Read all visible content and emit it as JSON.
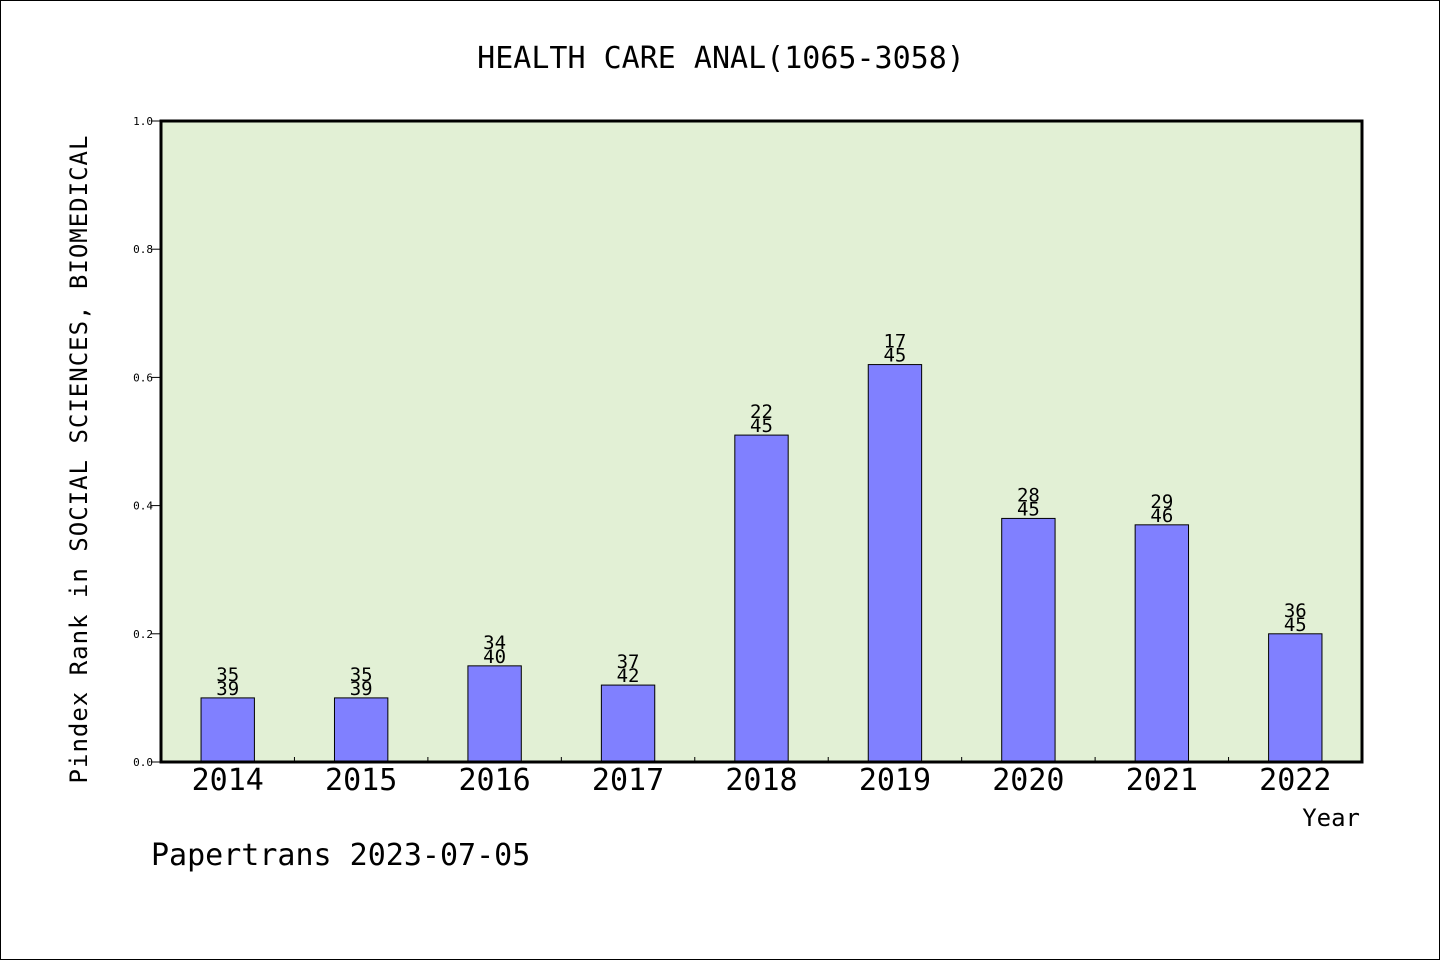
{
  "chart_data": {
    "type": "bar",
    "title": "HEALTH CARE ANAL(1065-3058)",
    "xlabel": "Year",
    "ylabel": "Pindex Rank in SOCIAL SCIENCES, BIOMEDICAL",
    "ylim": [
      0.0,
      1.0
    ],
    "yticks": [
      "0.0",
      "0.2",
      "0.4",
      "0.6",
      "0.8",
      "1.0"
    ],
    "categories": [
      "2014",
      "2015",
      "2016",
      "2017",
      "2018",
      "2019",
      "2020",
      "2021",
      "2022"
    ],
    "values": [
      0.1,
      0.1,
      0.15,
      0.12,
      0.51,
      0.62,
      0.38,
      0.37,
      0.2
    ],
    "rank": [
      "35",
      "35",
      "34",
      "37",
      "22",
      "17",
      "28",
      "29",
      "36"
    ],
    "total": [
      "39",
      "39",
      "40",
      "42",
      "45",
      "45",
      "45",
      "46",
      "45"
    ],
    "grid": false,
    "colors": {
      "plot_background": "#e2f0d5",
      "bar_fill": "#8080ff",
      "bar_stroke": "#000000"
    }
  },
  "footer": {
    "text": "Papertrans 2023-07-05"
  }
}
